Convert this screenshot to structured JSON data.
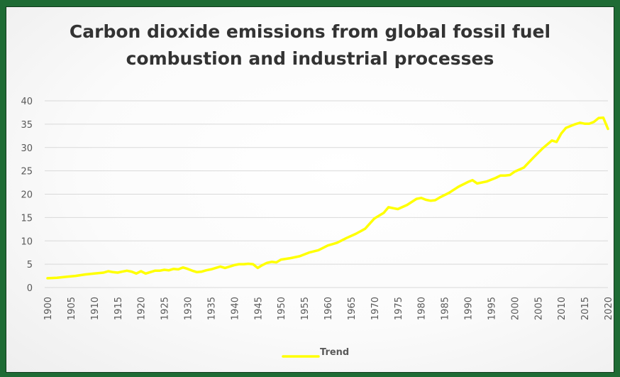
{
  "chart_data": {
    "type": "line",
    "title_lines": [
      "Carbon dioxide emissions from global fossil fuel",
      "combustion and industrial processes"
    ],
    "xlabel": "",
    "ylabel": "",
    "ylim": [
      0,
      40
    ],
    "xlim": [
      1900,
      2020
    ],
    "y_ticks": [
      "0",
      "5",
      "10",
      "15",
      "20",
      "25",
      "30",
      "35",
      "40"
    ],
    "x_ticks": [
      "1900",
      "1905",
      "1910",
      "1915",
      "1920",
      "1925",
      "1930",
      "1935",
      "1940",
      "1945",
      "1950",
      "1955",
      "1960",
      "1965",
      "1970",
      "1975",
      "1980",
      "1985",
      "1990",
      "1995",
      "2000",
      "2005",
      "2010",
      "2015",
      "2020"
    ],
    "grid": true,
    "legend": "bottom",
    "series": [
      {
        "name": "Trend",
        "color": "#ffff00",
        "points": [
          [
            1900,
            2.0
          ],
          [
            1902,
            2.1
          ],
          [
            1904,
            2.3
          ],
          [
            1906,
            2.5
          ],
          [
            1908,
            2.8
          ],
          [
            1910,
            3.0
          ],
          [
            1912,
            3.2
          ],
          [
            1913,
            3.5
          ],
          [
            1914,
            3.3
          ],
          [
            1915,
            3.2
          ],
          [
            1916,
            3.4
          ],
          [
            1917,
            3.6
          ],
          [
            1918,
            3.4
          ],
          [
            1919,
            3.0
          ],
          [
            1920,
            3.5
          ],
          [
            1921,
            3.0
          ],
          [
            1922,
            3.3
          ],
          [
            1923,
            3.6
          ],
          [
            1924,
            3.6
          ],
          [
            1925,
            3.8
          ],
          [
            1926,
            3.7
          ],
          [
            1927,
            4.0
          ],
          [
            1928,
            3.9
          ],
          [
            1929,
            4.3
          ],
          [
            1930,
            4.0
          ],
          [
            1931,
            3.6
          ],
          [
            1932,
            3.3
          ],
          [
            1933,
            3.4
          ],
          [
            1934,
            3.7
          ],
          [
            1935,
            3.9
          ],
          [
            1936,
            4.2
          ],
          [
            1937,
            4.5
          ],
          [
            1938,
            4.2
          ],
          [
            1939,
            4.5
          ],
          [
            1940,
            4.8
          ],
          [
            1941,
            5.0
          ],
          [
            1942,
            5.0
          ],
          [
            1943,
            5.1
          ],
          [
            1944,
            5.0
          ],
          [
            1945,
            4.2
          ],
          [
            1946,
            4.8
          ],
          [
            1947,
            5.3
          ],
          [
            1948,
            5.5
          ],
          [
            1949,
            5.4
          ],
          [
            1950,
            6.0
          ],
          [
            1952,
            6.3
          ],
          [
            1954,
            6.7
          ],
          [
            1956,
            7.5
          ],
          [
            1958,
            8.0
          ],
          [
            1960,
            9.0
          ],
          [
            1962,
            9.6
          ],
          [
            1964,
            10.6
          ],
          [
            1966,
            11.5
          ],
          [
            1968,
            12.6
          ],
          [
            1970,
            14.8
          ],
          [
            1972,
            16.0
          ],
          [
            1973,
            17.2
          ],
          [
            1974,
            17.0
          ],
          [
            1975,
            16.8
          ],
          [
            1977,
            17.7
          ],
          [
            1979,
            19.0
          ],
          [
            1980,
            19.2
          ],
          [
            1981,
            18.8
          ],
          [
            1982,
            18.6
          ],
          [
            1983,
            18.7
          ],
          [
            1984,
            19.3
          ],
          [
            1986,
            20.3
          ],
          [
            1988,
            21.6
          ],
          [
            1990,
            22.6
          ],
          [
            1991,
            23.0
          ],
          [
            1992,
            22.3
          ],
          [
            1994,
            22.7
          ],
          [
            1996,
            23.5
          ],
          [
            1997,
            24.0
          ],
          [
            1998,
            24.0
          ],
          [
            1999,
            24.1
          ],
          [
            2000,
            24.8
          ],
          [
            2002,
            25.7
          ],
          [
            2004,
            27.8
          ],
          [
            2006,
            29.8
          ],
          [
            2008,
            31.5
          ],
          [
            2009,
            31.2
          ],
          [
            2010,
            33.0
          ],
          [
            2011,
            34.2
          ],
          [
            2012,
            34.6
          ],
          [
            2013,
            35.0
          ],
          [
            2014,
            35.3
          ],
          [
            2015,
            35.1
          ],
          [
            2016,
            35.1
          ],
          [
            2017,
            35.5
          ],
          [
            2018,
            36.3
          ],
          [
            2019,
            36.4
          ],
          [
            2020,
            34.0
          ]
        ]
      }
    ]
  }
}
